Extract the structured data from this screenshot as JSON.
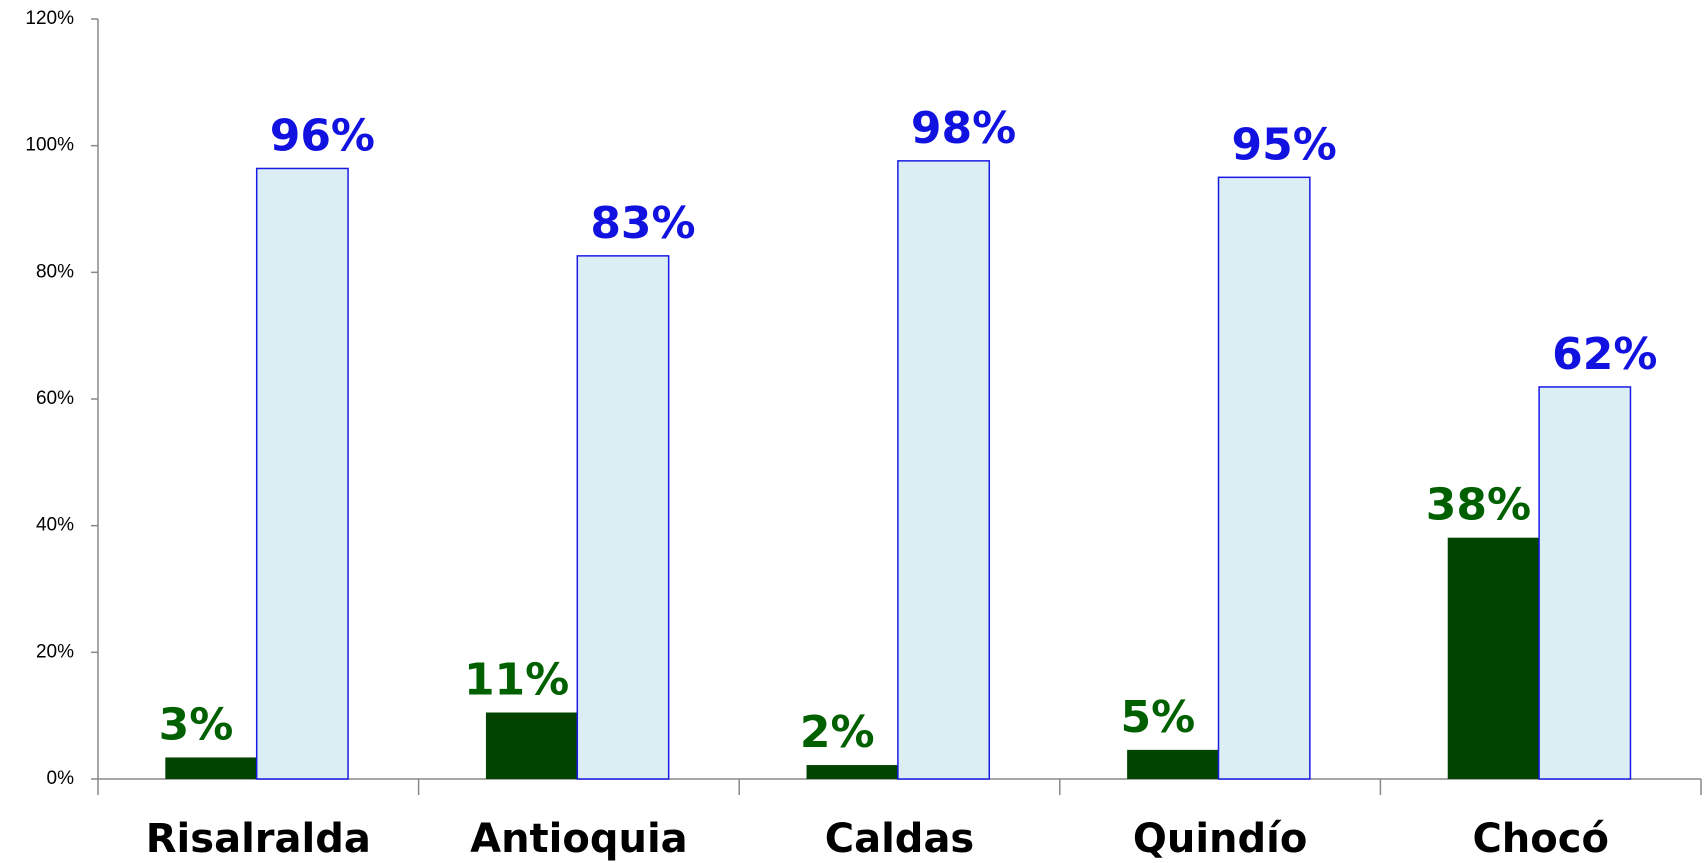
{
  "chart_data": {
    "type": "bar",
    "categories": [
      "Risalralda",
      "Antioquia",
      "Caldas",
      "Quindío",
      "Chocó"
    ],
    "series": [
      {
        "color": "#004400",
        "label_color": "#006000",
        "values": [
          3.4,
          10.5,
          2.2,
          4.6,
          38.1
        ],
        "value_labels": [
          "3%",
          "11%",
          "2%",
          "5%",
          "38%"
        ]
      },
      {
        "color": "#dbeef4",
        "edge_color": "#1a1ae6",
        "label_color": "#1212e0",
        "values": [
          96.4,
          82.6,
          97.6,
          95.0,
          61.9
        ],
        "value_labels": [
          "96%",
          "83%",
          "98%",
          "95%",
          "62%"
        ]
      }
    ],
    "ylim": [
      0,
      120
    ],
    "yticks": [
      {
        "value": 0,
        "label": "0%"
      },
      {
        "value": 20,
        "label": "20%"
      },
      {
        "value": 40,
        "label": "40%"
      },
      {
        "value": 60,
        "label": "60%"
      },
      {
        "value": 80,
        "label": "80%"
      },
      {
        "value": 100,
        "label": "100%"
      },
      {
        "value": 120,
        "label": "120%"
      }
    ],
    "grid": false
  }
}
